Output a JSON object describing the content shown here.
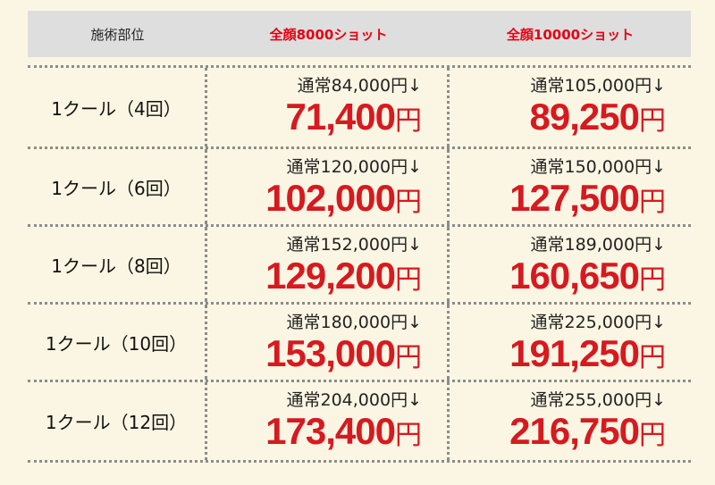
{
  "header": {
    "col0": "施術部位",
    "col1": "全顔8000ショット",
    "col2": "全顔10000ショット"
  },
  "rows": [
    {
      "label": "1クール（4回）",
      "plan1": {
        "regular": "通常84,000円↓",
        "sale": "71,400",
        "unit": "円"
      },
      "plan2": {
        "regular": "通常105,000円↓",
        "sale": "89,250",
        "unit": "円"
      }
    },
    {
      "label": "1クール（6回）",
      "plan1": {
        "regular": "通常120,000円↓",
        "sale": "102,000",
        "unit": "円"
      },
      "plan2": {
        "regular": "通常150,000円↓",
        "sale": "127,500",
        "unit": "円"
      }
    },
    {
      "label": "1クール（8回）",
      "plan1": {
        "regular": "通常152,000円↓",
        "sale": "129,200",
        "unit": "円"
      },
      "plan2": {
        "regular": "通常189,000円↓",
        "sale": "160,650",
        "unit": "円"
      }
    },
    {
      "label": "1クール（10回）",
      "plan1": {
        "regular": "通常180,000円↓",
        "sale": "153,000",
        "unit": "円"
      },
      "plan2": {
        "regular": "通常225,000円↓",
        "sale": "191,250",
        "unit": "円"
      }
    },
    {
      "label": "1クール（12回）",
      "plan1": {
        "regular": "通常204,000円↓",
        "sale": "173,400",
        "unit": "円"
      },
      "plan2": {
        "regular": "通常255,000円↓",
        "sale": "216,750",
        "unit": "円"
      }
    }
  ],
  "colors": {
    "background": "#fbf6e3",
    "header_bg": "#dedede",
    "accent_red": "#e60012",
    "price_red": "#d71920"
  }
}
